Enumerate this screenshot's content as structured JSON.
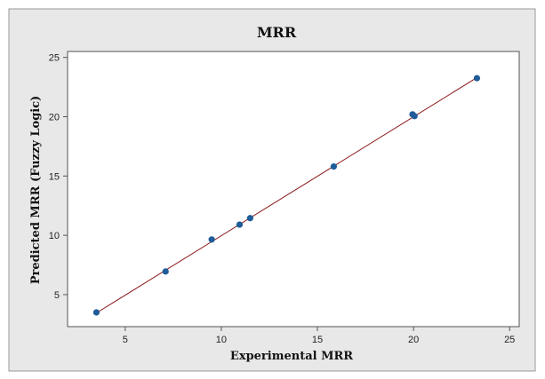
{
  "chart_data": {
    "type": "scatter",
    "title": "MRR",
    "xlabel": "Experimental MRR",
    "ylabel": "Predicted MRR (Fuzzy Logic)",
    "xlim": [
      2,
      25.5
    ],
    "ylim": [
      2.3,
      25.5
    ],
    "xticks": [
      5,
      10,
      15,
      20,
      25
    ],
    "yticks": [
      5,
      10,
      15,
      20,
      25
    ],
    "grid": false,
    "colors": {
      "outer_bg": "#e8e8e8",
      "plot_bg": "#ffffff",
      "marker": "#1f5c99",
      "fit_line": "#8b1a1a",
      "frame": "#555555"
    },
    "points": [
      {
        "x": 3.5,
        "y": 3.5
      },
      {
        "x": 7.1,
        "y": 6.95
      },
      {
        "x": 9.5,
        "y": 9.65
      },
      {
        "x": 10.95,
        "y": 10.9
      },
      {
        "x": 11.5,
        "y": 11.45
      },
      {
        "x": 15.85,
        "y": 15.8
      },
      {
        "x": 19.95,
        "y": 20.2
      },
      {
        "x": 20.05,
        "y": 20.05
      },
      {
        "x": 23.3,
        "y": 23.25
      }
    ],
    "fit_line": {
      "from": [
        3.5,
        3.45
      ],
      "to": [
        23.3,
        23.3
      ]
    }
  }
}
